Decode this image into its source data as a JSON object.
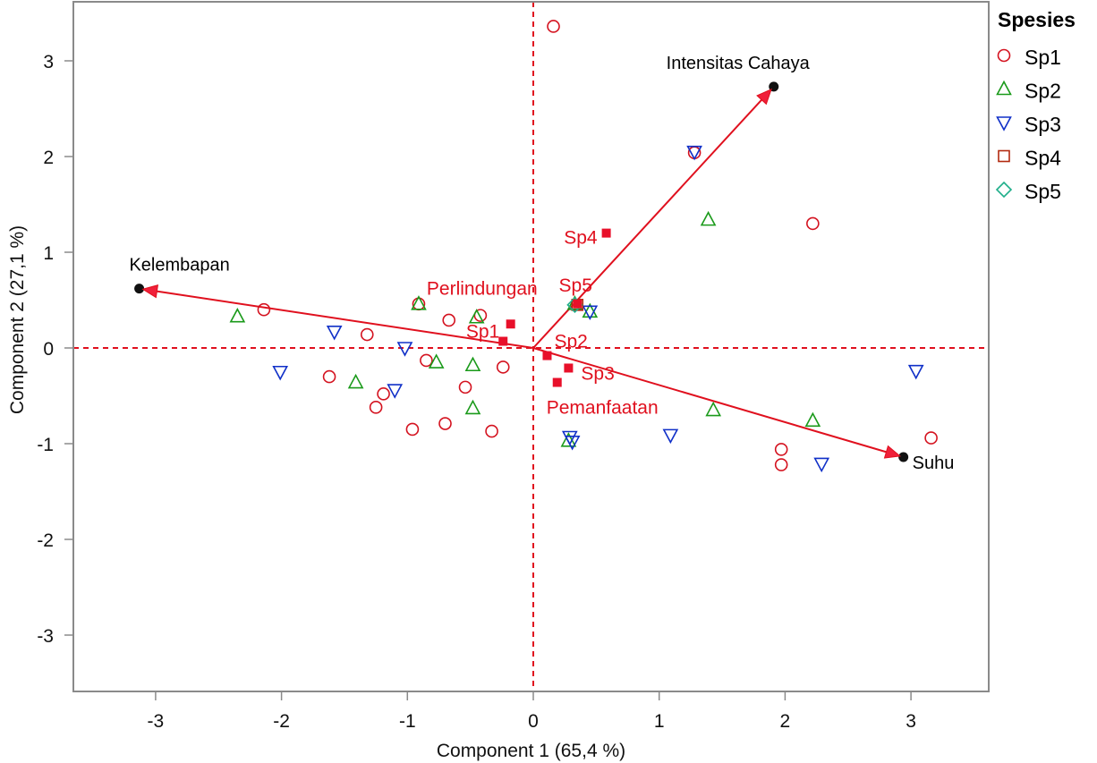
{
  "chart_data": {
    "type": "scatter",
    "title": "",
    "xlabel": "Component 1  (65,4 %)",
    "ylabel": "Component 2  (27,1 %)",
    "xlim": [
      -3.65,
      3.62
    ],
    "ylim": [
      -3.59,
      3.62
    ],
    "xticks": [
      -3,
      -2,
      -1,
      0,
      1,
      2,
      3
    ],
    "yticks": [
      3,
      2,
      1,
      0,
      -1,
      -2,
      -3
    ],
    "grid": false,
    "reference_lines": {
      "x": 0,
      "y": 0,
      "color": "#e0101e",
      "style": "dashed"
    },
    "legend": {
      "title": "Spesies",
      "placement": "right",
      "entries": [
        {
          "name": "Sp1",
          "marker": "circle",
          "color": "#d4121f"
        },
        {
          "name": "Sp2",
          "marker": "triangle-up",
          "color": "#1a9a1a"
        },
        {
          "name": "Sp3",
          "marker": "triangle-down",
          "color": "#1030c8"
        },
        {
          "name": "Sp4",
          "marker": "square",
          "color": "#b22a10"
        },
        {
          "name": "Sp5",
          "marker": "diamond",
          "color": "#1fae8a"
        }
      ]
    },
    "series": [
      {
        "name": "Sp1",
        "marker": "circle",
        "color": "#d4121f",
        "points": [
          [
            0.16,
            3.36
          ],
          [
            1.28,
            2.04
          ],
          [
            2.22,
            1.3
          ],
          [
            -2.14,
            0.4
          ],
          [
            -0.91,
            0.46
          ],
          [
            -0.67,
            0.29
          ],
          [
            -0.42,
            0.34
          ],
          [
            -1.32,
            0.14
          ],
          [
            -0.85,
            -0.13
          ],
          [
            -1.62,
            -0.3
          ],
          [
            -1.19,
            -0.48
          ],
          [
            -1.25,
            -0.62
          ],
          [
            -0.24,
            -0.2
          ],
          [
            -0.54,
            -0.41
          ],
          [
            -0.96,
            -0.85
          ],
          [
            -0.7,
            -0.79
          ],
          [
            -0.33,
            -0.87
          ],
          [
            1.97,
            -1.06
          ],
          [
            1.97,
            -1.22
          ],
          [
            3.16,
            -0.94
          ]
        ]
      },
      {
        "name": "Sp2",
        "marker": "triangle-up",
        "color": "#1a9a1a",
        "points": [
          [
            -2.35,
            0.33
          ],
          [
            -0.91,
            0.46
          ],
          [
            -0.45,
            0.32
          ],
          [
            0.33,
            0.46
          ],
          [
            0.45,
            0.38
          ],
          [
            1.39,
            1.34
          ],
          [
            -0.77,
            -0.15
          ],
          [
            -0.48,
            -0.18
          ],
          [
            -1.41,
            -0.36
          ],
          [
            -0.48,
            -0.63
          ],
          [
            1.43,
            -0.65
          ],
          [
            2.22,
            -0.76
          ],
          [
            0.28,
            -0.97
          ]
        ]
      },
      {
        "name": "Sp3",
        "marker": "triangle-down",
        "color": "#1030c8",
        "points": [
          [
            1.28,
            2.05
          ],
          [
            -1.58,
            0.17
          ],
          [
            -1.02,
            0.0
          ],
          [
            -2.01,
            -0.25
          ],
          [
            -1.1,
            -0.44
          ],
          [
            0.45,
            0.38
          ],
          [
            0.29,
            -0.93
          ],
          [
            0.31,
            -0.98
          ],
          [
            1.09,
            -0.91
          ],
          [
            2.29,
            -1.21
          ],
          [
            3.04,
            -0.24
          ]
        ]
      },
      {
        "name": "Sp4",
        "marker": "square",
        "color": "#b22a10",
        "points": [
          [
            0.35,
            0.45
          ]
        ]
      },
      {
        "name": "Sp5",
        "marker": "diamond",
        "color": "#1fae8a",
        "points": [
          [
            0.33,
            0.45
          ]
        ]
      }
    ],
    "vectors": [
      {
        "label": "Intensitas Cahaya",
        "x": 1.91,
        "y": 2.73,
        "label_anchor": "above"
      },
      {
        "label": "Kelembapan",
        "x": -3.13,
        "y": 0.62,
        "label_anchor": "above"
      },
      {
        "label": "Suhu",
        "x": 2.94,
        "y": -1.14,
        "label_anchor": "right"
      }
    ],
    "vector_color": "#e0101e",
    "group_centroids": [
      {
        "label": "Sp4",
        "x": 0.58,
        "y": 1.2,
        "label_side": "left"
      },
      {
        "label": "Sp5",
        "x": 0.35,
        "y": 0.46,
        "label_side": "above"
      },
      {
        "label": "Perlindungan",
        "x": -0.18,
        "y": 0.25,
        "label_side": "above-left"
      },
      {
        "label": "Sp1",
        "x": -0.24,
        "y": 0.07,
        "label_side": "left"
      },
      {
        "label": "Sp2",
        "x": 0.11,
        "y": -0.08,
        "label_side": "above-right"
      },
      {
        "label": "Sp3",
        "x": 0.28,
        "y": -0.21,
        "label_side": "right"
      },
      {
        "label": "Pemanfaatan",
        "x": 0.19,
        "y": -0.36,
        "label_side": "below"
      }
    ],
    "centroid_color": "#e8102a"
  }
}
